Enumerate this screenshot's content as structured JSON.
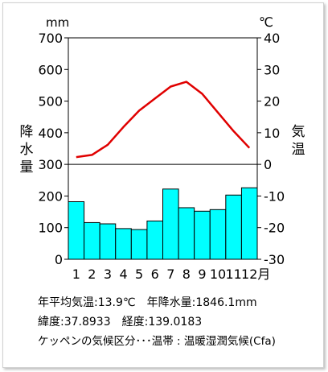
{
  "chart_data": {
    "type": "bar+line",
    "categories": [
      "1",
      "2",
      "3",
      "4",
      "5",
      "6",
      "7",
      "8",
      "9",
      "10",
      "11",
      "12月"
    ],
    "precip_unit": "mm",
    "temp_unit": "℃",
    "precip_axis_label": "降水量",
    "temp_axis_label": "気温",
    "precip_ticks": [
      0,
      100,
      200,
      300,
      400,
      500,
      600,
      700
    ],
    "temp_ticks": [
      -30,
      -20,
      -10,
      0,
      10,
      20,
      30,
      40
    ],
    "precip_ylim": [
      0,
      700
    ],
    "temp_ylim": [
      -30,
      40
    ],
    "precipitation": [
      182,
      116,
      112,
      97,
      94,
      121,
      222,
      163,
      152,
      157,
      203,
      226
    ],
    "temperature": [
      2.3,
      3.0,
      6.2,
      11.8,
      17.0,
      20.8,
      24.6,
      26.1,
      22.3,
      16.4,
      10.5,
      5.2
    ],
    "bar_color": "#00ffff",
    "line_color": "#e00000"
  },
  "info": {
    "line1_a": "年平均気温:13.9℃",
    "line1_b": "年降水量:1846.1mm",
    "line2_a": "緯度:37.8933",
    "line2_b": "経度:139.0183",
    "line3": "ケッペンの気候区分･･･温帯 : 温暖湿潤気候(Cfa)"
  }
}
